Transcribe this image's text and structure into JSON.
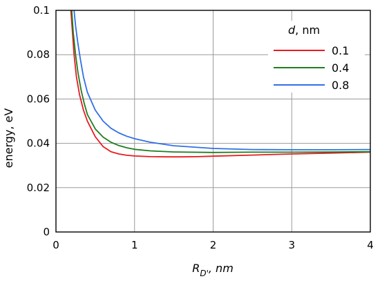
{
  "chart_data": {
    "type": "line",
    "xlabel": {
      "main": "R",
      "sub": "D'",
      "unit": ", nm"
    },
    "ylabel": "energy, eV",
    "xlim": [
      0,
      4
    ],
    "ylim": [
      0,
      0.1
    ],
    "xticks": [
      0,
      1,
      2,
      3,
      4
    ],
    "xtick_labels": [
      "0",
      "1",
      "2",
      "3",
      "4"
    ],
    "yticks": [
      0,
      0.02,
      0.04,
      0.06,
      0.08,
      0.1
    ],
    "ytick_labels": [
      "0",
      "0.02",
      "0.04",
      "0.06",
      "0.08",
      "0.1"
    ],
    "grid": true,
    "legend": {
      "title_var": "d",
      "title_unit": ", nm",
      "placement": "top-right"
    },
    "series": [
      {
        "name": "0.1",
        "color": "#e8191f",
        "x": [
          0.19,
          0.21,
          0.23,
          0.26,
          0.3,
          0.35,
          0.4,
          0.5,
          0.6,
          0.7,
          0.8,
          0.9,
          1.0,
          1.2,
          1.4,
          1.6,
          1.8,
          2.0,
          2.5,
          3.0,
          3.5,
          4.0
        ],
        "y": [
          0.1,
          0.09,
          0.08,
          0.07,
          0.062,
          0.055,
          0.05,
          0.043,
          0.0385,
          0.0362,
          0.0352,
          0.0346,
          0.0343,
          0.034,
          0.0339,
          0.0339,
          0.034,
          0.0342,
          0.0347,
          0.0352,
          0.0356,
          0.036
        ]
      },
      {
        "name": "0.4",
        "color": "#1e7d1e",
        "x": [
          0.2,
          0.22,
          0.25,
          0.28,
          0.32,
          0.36,
          0.4,
          0.5,
          0.6,
          0.7,
          0.8,
          0.9,
          1.0,
          1.2,
          1.5,
          2.0,
          2.5,
          3.0,
          3.5,
          4.0
        ],
        "y": [
          0.1,
          0.09,
          0.08,
          0.072,
          0.064,
          0.058,
          0.053,
          0.0465,
          0.0428,
          0.0405,
          0.039,
          0.038,
          0.0373,
          0.0366,
          0.0361,
          0.0359,
          0.036,
          0.036,
          0.0361,
          0.0362
        ]
      },
      {
        "name": "0.8",
        "color": "#2f6fe6",
        "x": [
          0.23,
          0.25,
          0.28,
          0.31,
          0.35,
          0.4,
          0.5,
          0.6,
          0.7,
          0.8,
          0.9,
          1.0,
          1.2,
          1.5,
          2.0,
          2.5,
          3.0,
          3.5,
          4.0
        ],
        "y": [
          0.1,
          0.093,
          0.085,
          0.078,
          0.07,
          0.063,
          0.055,
          0.05,
          0.0468,
          0.0447,
          0.0432,
          0.0421,
          0.0405,
          0.0389,
          0.0377,
          0.0372,
          0.0371,
          0.0371,
          0.0372
        ]
      }
    ]
  }
}
